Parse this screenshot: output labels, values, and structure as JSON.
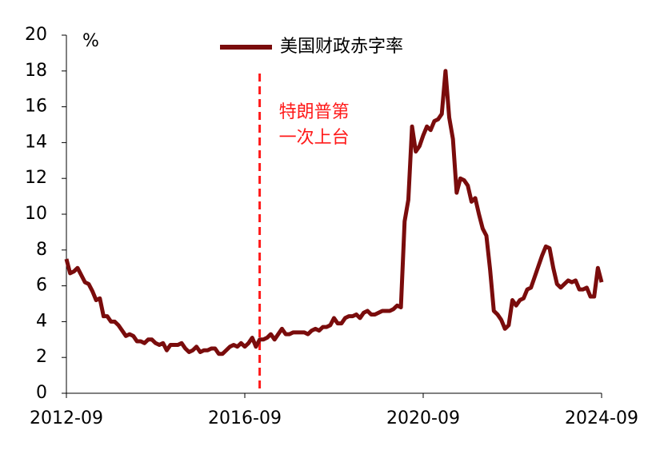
{
  "chart_data": {
    "type": "line",
    "y_label": "%",
    "x": [
      "2012-09",
      "2012-10",
      "2012-11",
      "2012-12",
      "2013-01",
      "2013-02",
      "2013-03",
      "2013-04",
      "2013-05",
      "2013-06",
      "2013-07",
      "2013-08",
      "2013-09",
      "2013-10",
      "2013-11",
      "2013-12",
      "2014-01",
      "2014-02",
      "2014-03",
      "2014-04",
      "2014-05",
      "2014-06",
      "2014-07",
      "2014-08",
      "2014-09",
      "2014-10",
      "2014-11",
      "2014-12",
      "2015-01",
      "2015-02",
      "2015-03",
      "2015-04",
      "2015-05",
      "2015-06",
      "2015-07",
      "2015-08",
      "2015-09",
      "2015-10",
      "2015-11",
      "2015-12",
      "2016-01",
      "2016-02",
      "2016-03",
      "2016-04",
      "2016-05",
      "2016-06",
      "2016-07",
      "2016-08",
      "2016-09",
      "2016-10",
      "2016-11",
      "2016-12",
      "2017-01",
      "2017-02",
      "2017-03",
      "2017-04",
      "2017-05",
      "2017-06",
      "2017-07",
      "2017-08",
      "2017-09",
      "2017-10",
      "2017-11",
      "2017-12",
      "2018-01",
      "2018-02",
      "2018-03",
      "2018-04",
      "2018-05",
      "2018-06",
      "2018-07",
      "2018-08",
      "2018-09",
      "2018-10",
      "2018-11",
      "2018-12",
      "2019-01",
      "2019-02",
      "2019-03",
      "2019-04",
      "2019-05",
      "2019-06",
      "2019-07",
      "2019-08",
      "2019-09",
      "2019-10",
      "2019-11",
      "2019-12",
      "2020-01",
      "2020-02",
      "2020-03",
      "2020-04",
      "2020-05",
      "2020-06",
      "2020-07",
      "2020-08",
      "2020-09",
      "2020-10",
      "2020-11",
      "2020-12",
      "2021-01",
      "2021-02",
      "2021-03",
      "2021-04",
      "2021-05",
      "2021-06",
      "2021-07",
      "2021-08",
      "2021-09",
      "2021-10",
      "2021-11",
      "2021-12",
      "2022-01",
      "2022-02",
      "2022-03",
      "2022-04",
      "2022-05",
      "2022-06",
      "2022-07",
      "2022-08",
      "2022-09",
      "2022-10",
      "2022-11",
      "2022-12",
      "2023-01",
      "2023-02",
      "2023-03",
      "2023-04",
      "2023-05",
      "2023-06",
      "2023-07",
      "2023-08",
      "2023-09",
      "2023-10",
      "2023-11",
      "2023-12",
      "2024-01",
      "2024-02",
      "2024-03",
      "2024-04",
      "2024-05",
      "2024-06",
      "2024-07",
      "2024-08",
      "2024-09"
    ],
    "series": [
      {
        "name": "美国财政赤字率",
        "color": "#7a0c0c",
        "values": [
          7.5,
          6.7,
          6.8,
          7.0,
          6.6,
          6.2,
          6.1,
          5.7,
          5.2,
          5.3,
          4.3,
          4.3,
          4.0,
          4.0,
          3.8,
          3.5,
          3.2,
          3.3,
          3.2,
          2.9,
          2.9,
          2.8,
          3.0,
          3.0,
          2.8,
          2.7,
          2.8,
          2.4,
          2.7,
          2.7,
          2.7,
          2.8,
          2.5,
          2.3,
          2.4,
          2.6,
          2.3,
          2.4,
          2.4,
          2.5,
          2.5,
          2.2,
          2.2,
          2.4,
          2.6,
          2.7,
          2.6,
          2.8,
          2.6,
          2.8,
          3.1,
          2.6,
          3.0,
          3.0,
          3.1,
          3.3,
          3.0,
          3.3,
          3.6,
          3.3,
          3.3,
          3.4,
          3.4,
          3.4,
          3.4,
          3.3,
          3.5,
          3.6,
          3.5,
          3.7,
          3.7,
          3.8,
          4.2,
          3.9,
          3.9,
          4.2,
          4.3,
          4.3,
          4.4,
          4.2,
          4.5,
          4.6,
          4.4,
          4.4,
          4.5,
          4.6,
          4.6,
          4.6,
          4.7,
          4.9,
          4.8,
          9.6,
          10.8,
          14.9,
          13.5,
          13.8,
          14.4,
          14.9,
          14.7,
          15.2,
          15.3,
          15.6,
          18.0,
          15.4,
          14.2,
          11.2,
          12.0,
          11.9,
          11.6,
          10.7,
          10.9,
          10.0,
          9.2,
          8.8,
          6.9,
          4.6,
          4.4,
          4.1,
          3.6,
          3.8,
          5.2,
          4.9,
          5.2,
          5.3,
          5.8,
          5.9,
          6.5,
          7.1,
          7.7,
          8.2,
          8.1,
          7.0,
          6.1,
          5.9,
          6.1,
          6.3,
          6.2,
          6.3,
          5.8,
          5.8,
          5.9,
          5.4,
          5.4,
          7.0,
          6.2
        ]
      }
    ],
    "xticks": [
      "2012-09",
      "2016-09",
      "2020-09",
      "2024-09"
    ],
    "ylim": [
      0,
      20
    ],
    "yticks": [
      0,
      2,
      4,
      6,
      8,
      10,
      12,
      14,
      16,
      18,
      20
    ],
    "grid": false,
    "legend": "top",
    "annotation": {
      "x": "2017-01",
      "lines": [
        "特朗普第",
        "一次上台"
      ],
      "color": "#ff1a1a"
    }
  }
}
